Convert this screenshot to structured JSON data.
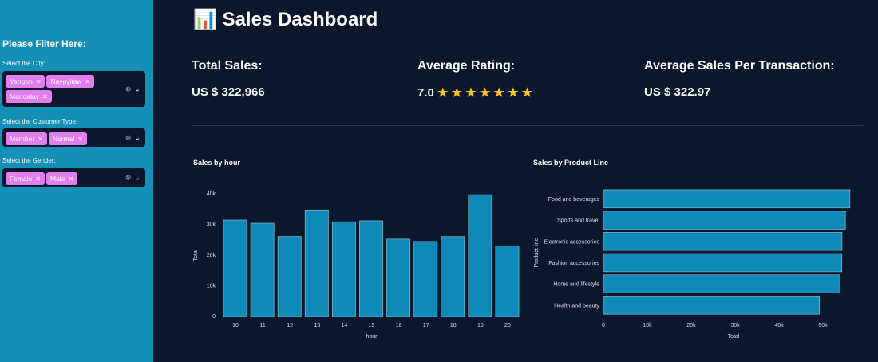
{
  "sidebar": {
    "header": "Please Filter Here:",
    "filters": [
      {
        "label": "Select the City:",
        "selected": [
          "Yangon",
          "Naypyitaw",
          "Mandalay"
        ]
      },
      {
        "label": "Select the Customer Type:",
        "selected": [
          "Member",
          "Normal"
        ]
      },
      {
        "label": "Select the Gender:",
        "selected": [
          "Female",
          "Male"
        ]
      }
    ]
  },
  "title": {
    "icon": "bar-chart-icon",
    "text": "Sales Dashboard"
  },
  "kpis": [
    {
      "label": "Total Sales:",
      "value": "US $ 322,966"
    },
    {
      "label": "Average Rating:",
      "value": "7.0",
      "stars": "★ ★ ★ ★ ★ ★ ★"
    },
    {
      "label": "Average Sales Per Transaction:",
      "value": "US $ 322.97"
    }
  ],
  "colors": {
    "sidebar": "#148fb6",
    "bar": "#0d8ab8",
    "tag": "#e27ff0",
    "background": "#0b172c"
  },
  "chart_data": [
    {
      "type": "bar",
      "title": "Sales by hour",
      "xlabel": "hour",
      "ylabel": "Total",
      "categories": [
        "10",
        "11",
        "12",
        "13",
        "14",
        "15",
        "16",
        "17",
        "18",
        "19",
        "20"
      ],
      "values": [
        31421,
        30377,
        26066,
        34723,
        30828,
        31180,
        25226,
        24445,
        26030,
        39699,
        22969
      ],
      "ylim": [
        0,
        40000
      ],
      "yticks": [
        "0",
        "10k",
        "20k",
        "30k",
        "40k"
      ]
    },
    {
      "type": "bar",
      "orientation": "horizontal",
      "title": "Sales by Product Line",
      "xlabel": "Total",
      "ylabel": "Product line",
      "categories": [
        "Food and beverages",
        "Sports and travel",
        "Electronic accessories",
        "Fashion accessories",
        "Home and lifestyle",
        "Health and beauty"
      ],
      "values": [
        56145,
        55123,
        54338,
        54306,
        53862,
        49194
      ],
      "xticks": [
        "0",
        "10k",
        "20k",
        "30k",
        "40k",
        "50k"
      ]
    }
  ]
}
